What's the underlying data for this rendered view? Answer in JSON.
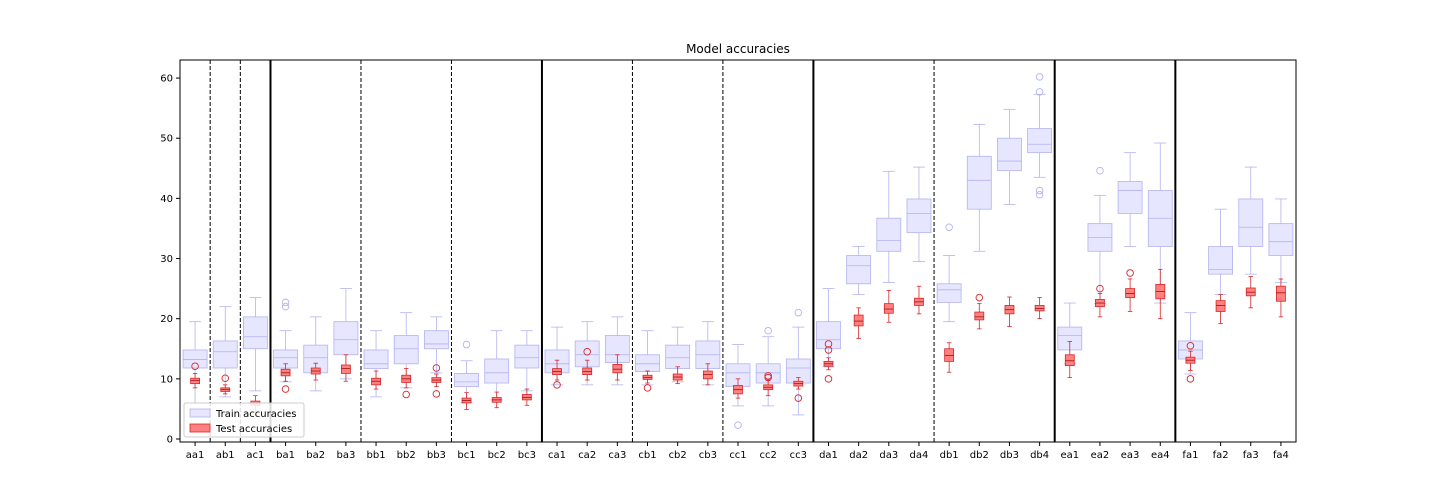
{
  "chart_data": {
    "type": "box",
    "title": "Model accuracies",
    "xlabel": "",
    "ylabel": "",
    "ylim": [
      -0.5,
      63
    ],
    "yticks": [
      0,
      10,
      20,
      30,
      40,
      50,
      60
    ],
    "grid": false,
    "legend_position": "lower-left",
    "colors": {
      "train_fill": "#e6e6ff",
      "train_edge": "#b3b3f0",
      "test_fill": "#ff8080",
      "test_edge": "#d62728"
    },
    "legend": [
      {
        "name": "Train accuracies",
        "key": "train"
      },
      {
        "name": "Test accuracies",
        "key": "test"
      }
    ],
    "categories": [
      "aa1",
      "ab1",
      "ac1",
      "ba1",
      "ba2",
      "ba3",
      "bb1",
      "bb2",
      "bb3",
      "bc1",
      "bc2",
      "bc3",
      "ca1",
      "ca2",
      "ca3",
      "cb1",
      "cb2",
      "cb3",
      "cc1",
      "cc2",
      "cc3",
      "da1",
      "da2",
      "da3",
      "da4",
      "db1",
      "db2",
      "db3",
      "db4",
      "ea1",
      "ea2",
      "ea3",
      "ea4",
      "fa1",
      "fa2",
      "fa3",
      "fa4"
    ],
    "separators": [
      {
        "after": "aa1",
        "style": "dashed"
      },
      {
        "after": "ab1",
        "style": "dashed"
      },
      {
        "after": "ac1",
        "style": "solid"
      },
      {
        "after": "ba3",
        "style": "dashed"
      },
      {
        "after": "bb3",
        "style": "dashed"
      },
      {
        "after": "bc3",
        "style": "solid"
      },
      {
        "after": "ca3",
        "style": "dashed"
      },
      {
        "after": "cb3",
        "style": "dashed"
      },
      {
        "after": "cc3",
        "style": "solid"
      },
      {
        "after": "da4",
        "style": "dashed"
      },
      {
        "after": "db4",
        "style": "solid"
      },
      {
        "after": "ea4",
        "style": "solid"
      }
    ],
    "series": [
      {
        "name": "Train accuracies",
        "key": "train",
        "boxes": [
          {
            "wl": 6,
            "q1": 11.8,
            "med": 13.2,
            "q3": 14.8,
            "wh": 19.5,
            "out": []
          },
          {
            "wl": 7,
            "q1": 11.8,
            "med": 14.5,
            "q3": 16.3,
            "wh": 22,
            "out": []
          },
          {
            "wl": 8,
            "q1": 15,
            "med": 17,
            "q3": 20.3,
            "wh": 23.5,
            "out": []
          },
          {
            "wl": 9.5,
            "q1": 11.8,
            "med": 13.5,
            "q3": 14.8,
            "wh": 18,
            "out": [
              22,
              22.7
            ]
          },
          {
            "wl": 8,
            "q1": 11,
            "med": 13.5,
            "q3": 15.6,
            "wh": 20.3,
            "out": []
          },
          {
            "wl": 10,
            "q1": 14,
            "med": 16.5,
            "q3": 19.5,
            "wh": 25,
            "out": []
          },
          {
            "wl": 7,
            "q1": 11.7,
            "med": 12.5,
            "q3": 14.8,
            "wh": 18,
            "out": []
          },
          {
            "wl": 8.5,
            "q1": 12.5,
            "med": 15,
            "q3": 17.2,
            "wh": 21,
            "out": []
          },
          {
            "wl": 11,
            "q1": 15,
            "med": 15.8,
            "q3": 18,
            "wh": 20.3,
            "out": []
          },
          {
            "wl": 6,
            "q1": 8.7,
            "med": 9.5,
            "q3": 10.9,
            "wh": 13,
            "out": [
              15.7
            ]
          },
          {
            "wl": 6.5,
            "q1": 9.3,
            "med": 11,
            "q3": 13.3,
            "wh": 18,
            "out": []
          },
          {
            "wl": 8,
            "q1": 11.8,
            "med": 13.5,
            "q3": 15.6,
            "wh": 18,
            "out": []
          },
          {
            "wl": 9,
            "q1": 11,
            "med": 12.5,
            "q3": 14.8,
            "wh": 18.6,
            "out": []
          },
          {
            "wl": 9,
            "q1": 12,
            "med": 14,
            "q3": 16.3,
            "wh": 19.5,
            "out": []
          },
          {
            "wl": 9,
            "q1": 12.7,
            "med": 14,
            "q3": 17.2,
            "wh": 20.3,
            "out": []
          },
          {
            "wl": 9,
            "q1": 11.2,
            "med": 12.5,
            "q3": 14,
            "wh": 18,
            "out": []
          },
          {
            "wl": 9.5,
            "q1": 11.7,
            "med": 13.5,
            "q3": 15.6,
            "wh": 18.6,
            "out": []
          },
          {
            "wl": 9,
            "q1": 11.7,
            "med": 14,
            "q3": 16.3,
            "wh": 19.5,
            "out": []
          },
          {
            "wl": 5.5,
            "q1": 8.7,
            "med": 11,
            "q3": 12.5,
            "wh": 15.7,
            "out": [
              2.3
            ]
          },
          {
            "wl": 5.5,
            "q1": 9.3,
            "med": 11,
            "q3": 12.5,
            "wh": 17,
            "out": [
              18
            ]
          },
          {
            "wl": 4,
            "q1": 9.3,
            "med": 11.8,
            "q3": 13.3,
            "wh": 18.6,
            "out": [
              21
            ]
          },
          {
            "wl": 12,
            "q1": 15,
            "med": 16.5,
            "q3": 19.5,
            "wh": 25,
            "out": []
          },
          {
            "wl": 24,
            "q1": 25.8,
            "med": 28.8,
            "q3": 30.5,
            "wh": 32,
            "out": []
          },
          {
            "wl": 26,
            "q1": 31.2,
            "med": 33,
            "q3": 36.7,
            "wh": 44.5,
            "out": []
          },
          {
            "wl": 29.5,
            "q1": 34.3,
            "med": 37.5,
            "q3": 39.9,
            "wh": 45.2,
            "out": []
          },
          {
            "wl": 19.5,
            "q1": 22.7,
            "med": 24.8,
            "q3": 25.8,
            "wh": 30.5,
            "out": [
              35.2
            ]
          },
          {
            "wl": 31.2,
            "q1": 38.2,
            "med": 43,
            "q3": 47,
            "wh": 52.3,
            "out": []
          },
          {
            "wl": 39,
            "q1": 44.6,
            "med": 46.2,
            "q3": 50,
            "wh": 54.8,
            "out": []
          },
          {
            "wl": 43.5,
            "q1": 47.6,
            "med": 49,
            "q3": 51.6,
            "wh": 57.3,
            "out": [
              40.6,
              41.3,
              57.7,
              60.2
            ]
          },
          {
            "wl": 12.5,
            "q1": 14.8,
            "med": 17.2,
            "q3": 18.6,
            "wh": 22.6,
            "out": []
          },
          {
            "wl": 22.5,
            "q1": 31.2,
            "med": 33.5,
            "q3": 35.8,
            "wh": 40.5,
            "out": [
              44.6
            ]
          },
          {
            "wl": 32,
            "q1": 37.5,
            "med": 41.3,
            "q3": 42.8,
            "wh": 47.6,
            "out": []
          },
          {
            "wl": 22.6,
            "q1": 32,
            "med": 36.7,
            "q3": 41.3,
            "wh": 49.2,
            "out": []
          },
          {
            "wl": 10.8,
            "q1": 13.3,
            "med": 14.8,
            "q3": 16.3,
            "wh": 21,
            "out": []
          },
          {
            "wl": 24,
            "q1": 27.4,
            "med": 28.2,
            "q3": 32,
            "wh": 38.2,
            "out": []
          },
          {
            "wl": 27.4,
            "q1": 32,
            "med": 35.2,
            "q3": 39.9,
            "wh": 45.2,
            "out": []
          },
          {
            "wl": 26,
            "q1": 30.5,
            "med": 32.8,
            "q3": 35.8,
            "wh": 39.9,
            "out": []
          }
        ]
      },
      {
        "name": "Test accuracies",
        "key": "test",
        "boxes": [
          {
            "wl": 8.5,
            "q1": 9.2,
            "med": 9.7,
            "q3": 10.1,
            "wh": 10.9,
            "out": [
              12.1
            ]
          },
          {
            "wl": 7.5,
            "q1": 7.9,
            "med": 8.2,
            "q3": 8.5,
            "wh": 9,
            "out": [
              10.1
            ]
          },
          {
            "wl": 4.5,
            "q1": 5.6,
            "med": 6,
            "q3": 6.3,
            "wh": 7.2,
            "out": []
          },
          {
            "wl": 9.6,
            "q1": 10.5,
            "med": 11,
            "q3": 11.6,
            "wh": 12.5,
            "out": [
              8.3
            ]
          },
          {
            "wl": 9.8,
            "q1": 10.8,
            "med": 11.3,
            "q3": 11.8,
            "wh": 12.6,
            "out": []
          },
          {
            "wl": 9.6,
            "q1": 10.9,
            "med": 11.7,
            "q3": 12.3,
            "wh": 14,
            "out": []
          },
          {
            "wl": 8.3,
            "q1": 9,
            "med": 9.6,
            "q3": 10.1,
            "wh": 11.3,
            "out": []
          },
          {
            "wl": 8.5,
            "q1": 9.4,
            "med": 10,
            "q3": 10.6,
            "wh": 11.7,
            "out": [
              7.4
            ]
          },
          {
            "wl": 8.7,
            "q1": 9.4,
            "med": 9.8,
            "q3": 10.2,
            "wh": 10.8,
            "out": [
              7.5,
              11.8
            ]
          },
          {
            "wl": 4.9,
            "q1": 6,
            "med": 6.4,
            "q3": 6.8,
            "wh": 7.7,
            "out": []
          },
          {
            "wl": 5.2,
            "q1": 6.1,
            "med": 6.5,
            "q3": 6.9,
            "wh": 7.8,
            "out": []
          },
          {
            "wl": 5.6,
            "q1": 6.5,
            "med": 6.9,
            "q3": 7.4,
            "wh": 8.3,
            "out": []
          },
          {
            "wl": 9.8,
            "q1": 10.7,
            "med": 11.2,
            "q3": 11.7,
            "wh": 13.1,
            "out": [
              9
            ]
          },
          {
            "wl": 9.8,
            "q1": 10.7,
            "med": 11.2,
            "q3": 11.8,
            "wh": 13.1,
            "out": [
              14.5
            ]
          },
          {
            "wl": 9.8,
            "q1": 11,
            "med": 11.6,
            "q3": 12.4,
            "wh": 14,
            "out": []
          },
          {
            "wl": 9.3,
            "q1": 9.9,
            "med": 10.2,
            "q3": 10.6,
            "wh": 11.3,
            "out": [
              8.5
            ]
          },
          {
            "wl": 9.2,
            "q1": 9.8,
            "med": 10.3,
            "q3": 10.8,
            "wh": 12,
            "out": []
          },
          {
            "wl": 9,
            "q1": 10,
            "med": 10.7,
            "q3": 11.3,
            "wh": 12.5,
            "out": []
          },
          {
            "wl": 6.8,
            "q1": 7.5,
            "med": 8.2,
            "q3": 8.9,
            "wh": 10,
            "out": []
          },
          {
            "wl": 7.2,
            "q1": 8.2,
            "med": 8.6,
            "q3": 9,
            "wh": 9.8,
            "out": [
              10.2,
              10.5
            ]
          },
          {
            "wl": 8.3,
            "q1": 8.8,
            "med": 9.2,
            "q3": 9.6,
            "wh": 10.2,
            "out": [
              6.8
            ]
          },
          {
            "wl": 11.5,
            "q1": 12.1,
            "med": 12.5,
            "q3": 12.9,
            "wh": 13.5,
            "out": [
              10,
              14.8,
              15.8
            ]
          },
          {
            "wl": 16.7,
            "q1": 18.8,
            "med": 19.6,
            "q3": 20.6,
            "wh": 21.8,
            "out": []
          },
          {
            "wl": 19.4,
            "q1": 20.9,
            "med": 21.6,
            "q3": 22.5,
            "wh": 24.7,
            "out": []
          },
          {
            "wl": 20.8,
            "q1": 22.2,
            "med": 22.8,
            "q3": 23.4,
            "wh": 25.4,
            "out": []
          },
          {
            "wl": 11.1,
            "q1": 12.9,
            "med": 13.9,
            "q3": 15,
            "wh": 16,
            "out": []
          },
          {
            "wl": 18.3,
            "q1": 19.8,
            "med": 20.3,
            "q3": 21.1,
            "wh": 22.5,
            "out": [
              23.5
            ]
          },
          {
            "wl": 18.7,
            "q1": 20.8,
            "med": 21.5,
            "q3": 22.2,
            "wh": 23.6,
            "out": []
          },
          {
            "wl": 20,
            "q1": 21.3,
            "med": 21.7,
            "q3": 22.2,
            "wh": 23.5,
            "out": []
          },
          {
            "wl": 10.2,
            "q1": 12.2,
            "med": 13,
            "q3": 14,
            "wh": 16.2,
            "out": []
          },
          {
            "wl": 20.3,
            "q1": 22,
            "med": 22.6,
            "q3": 23.2,
            "wh": 24.2,
            "out": [
              25
            ]
          },
          {
            "wl": 21.2,
            "q1": 23.5,
            "med": 24.2,
            "q3": 25,
            "wh": 26.6,
            "out": [
              27.6
            ]
          },
          {
            "wl": 20,
            "q1": 23.3,
            "med": 24.5,
            "q3": 25.7,
            "wh": 28.2,
            "out": []
          },
          {
            "wl": 11.4,
            "q1": 12.6,
            "med": 13.1,
            "q3": 13.6,
            "wh": 14.6,
            "out": [
              10,
              15.5
            ]
          },
          {
            "wl": 19.2,
            "q1": 21.2,
            "med": 22.2,
            "q3": 23,
            "wh": 24,
            "out": []
          },
          {
            "wl": 21.8,
            "q1": 23.8,
            "med": 24.4,
            "q3": 25.1,
            "wh": 27,
            "out": []
          },
          {
            "wl": 20.3,
            "q1": 22.9,
            "med": 24.3,
            "q3": 25.4,
            "wh": 26.6,
            "out": []
          }
        ]
      }
    ]
  }
}
